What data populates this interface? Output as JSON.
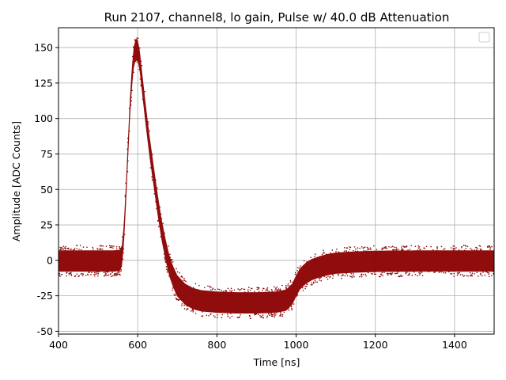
{
  "chart_data": {
    "type": "scatter",
    "title": "Run 2107, channel8, lo gain, Pulse w/ 40.0 dB Attenuation",
    "xlabel": "Time [ns]",
    "ylabel": "Amplitude [ADC Counts]",
    "xlim": [
      400,
      1500
    ],
    "ylim": [
      -52,
      164
    ],
    "xticks": [
      400,
      600,
      800,
      1000,
      1200,
      1400
    ],
    "yticks": [
      -50,
      -25,
      0,
      25,
      50,
      75,
      100,
      125,
      150
    ],
    "grid": true,
    "legend": "top-right, empty",
    "series": [
      {
        "color": "#8b0000",
        "envelope_center": [
          [
            400,
            -0.5
          ],
          [
            540,
            -0.5
          ],
          [
            555,
            0
          ],
          [
            560,
            3
          ],
          [
            565,
            18
          ],
          [
            570,
            45
          ],
          [
            575,
            75
          ],
          [
            580,
            105
          ],
          [
            585,
            128
          ],
          [
            590,
            143
          ],
          [
            595,
            149
          ],
          [
            600,
            148
          ],
          [
            605,
            141
          ],
          [
            610,
            128
          ],
          [
            620,
            103
          ],
          [
            630,
            80
          ],
          [
            640,
            60
          ],
          [
            650,
            40
          ],
          [
            660,
            22
          ],
          [
            670,
            8
          ],
          [
            680,
            -4
          ],
          [
            690,
            -12
          ],
          [
            700,
            -18
          ],
          [
            720,
            -24
          ],
          [
            740,
            -27
          ],
          [
            760,
            -28.5
          ],
          [
            800,
            -29.5
          ],
          [
            850,
            -30
          ],
          [
            900,
            -30
          ],
          [
            950,
            -29.5
          ],
          [
            975,
            -28
          ],
          [
            990,
            -24
          ],
          [
            1000,
            -18
          ],
          [
            1010,
            -13
          ],
          [
            1025,
            -9
          ],
          [
            1040,
            -6.5
          ],
          [
            1060,
            -4.5
          ],
          [
            1080,
            -3
          ],
          [
            1100,
            -2
          ],
          [
            1150,
            -1.2
          ],
          [
            1200,
            -0.7
          ],
          [
            1300,
            -0.5
          ],
          [
            1400,
            -0.5
          ],
          [
            1500,
            -0.5
          ]
        ],
        "envelope_halfwidth": 7.5
      }
    ]
  }
}
